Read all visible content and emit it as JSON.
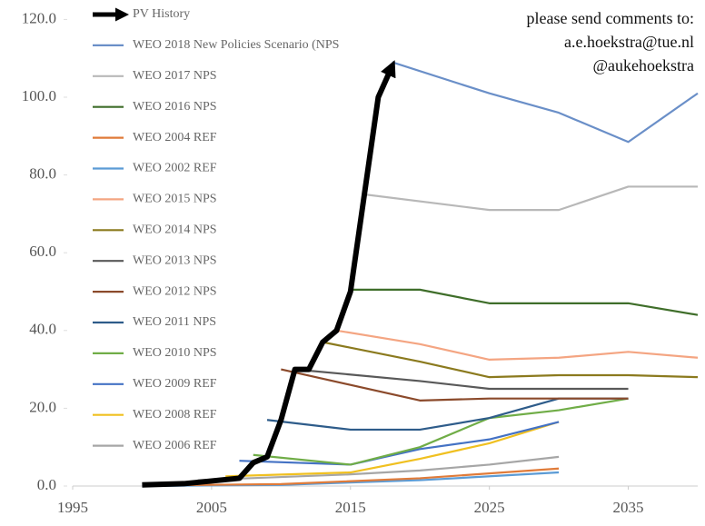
{
  "chart_data": {
    "type": "line",
    "annotation": [
      "please send comments to:",
      "a.e.hoekstra@tue.nl",
      "@aukehoekstra"
    ],
    "xlim": [
      1995,
      2040
    ],
    "xticks": [
      1995,
      2005,
      2015,
      2025,
      2035
    ],
    "ylim": [
      0,
      125
    ],
    "yticks": [
      {
        "value": 0,
        "label": "0.0"
      },
      {
        "value": 20,
        "label": "20.0"
      },
      {
        "value": 40,
        "label": "40.0"
      },
      {
        "value": 60,
        "label": "60.0"
      },
      {
        "value": 80,
        "label": "80.0"
      },
      {
        "value": 100,
        "label": "100.0"
      },
      {
        "value": 120,
        "label": "120.0"
      }
    ],
    "series": [
      {
        "name": "PV History",
        "color": "#000000",
        "x": [
          2000,
          2003,
          2005,
          2007,
          2008,
          2009,
          2010,
          2011,
          2012,
          2013,
          2014,
          2015,
          2016,
          2017,
          2018
        ],
        "values": [
          0.3,
          0.6,
          1.3,
          2,
          6,
          7.5,
          17,
          30,
          30,
          37,
          40,
          50,
          75,
          100,
          108
        ]
      },
      {
        "name": "WEO 2018 New Policies Scenario (NPS",
        "color": "#6a8fc8",
        "x": [
          2018,
          2025,
          2030,
          2035,
          2040
        ],
        "values": [
          109,
          101,
          96,
          88.5,
          101
        ]
      },
      {
        "name": "WEO 2017 NPS",
        "color": "#b8b8b8",
        "x": [
          2016,
          2025,
          2030,
          2035,
          2040
        ],
        "values": [
          75,
          71,
          71,
          77,
          77
        ]
      },
      {
        "name": "WEO 2016 NPS",
        "color": "#3f6e2a",
        "x": [
          2015,
          2020,
          2025,
          2030,
          2035,
          2040
        ],
        "values": [
          50.5,
          50.5,
          47,
          47,
          47,
          44
        ]
      },
      {
        "name": "WEO 2004 REF",
        "color": "#e07b39",
        "x": [
          2002,
          2010,
          2020,
          2030
        ],
        "values": [
          0.2,
          0.5,
          2,
          4.5
        ]
      },
      {
        "name": "WEO 2002 REF",
        "color": "#5b9bd5",
        "x": [
          2000,
          2010,
          2020,
          2030
        ],
        "values": [
          0,
          0.3,
          1.5,
          3.5
        ]
      },
      {
        "name": "WEO 2015 NPS",
        "color": "#f4a582",
        "x": [
          2014,
          2020,
          2025,
          2030,
          2035,
          2040
        ],
        "values": [
          40,
          36.5,
          32.5,
          33,
          34.5,
          33
        ]
      },
      {
        "name": "WEO 2014 NPS",
        "color": "#8b7a1e",
        "x": [
          2013,
          2020,
          2025,
          2030,
          2035,
          2040
        ],
        "values": [
          37,
          32,
          28,
          28.5,
          28.5,
          28
        ]
      },
      {
        "name": "WEO 2013 NPS",
        "color": "#595959",
        "x": [
          2011,
          2020,
          2025,
          2030,
          2035
        ],
        "values": [
          30,
          27,
          25,
          25,
          25
        ]
      },
      {
        "name": "WEO 2012 NPS",
        "color": "#8b4a2b",
        "x": [
          2010,
          2020,
          2025,
          2030,
          2035
        ],
        "values": [
          30,
          22,
          22.5,
          22.5,
          22.5
        ]
      },
      {
        "name": "WEO 2011 NPS",
        "color": "#2e5c8a",
        "x": [
          2009,
          2015,
          2020,
          2025,
          2030,
          2035
        ],
        "values": [
          17,
          14.5,
          14.5,
          17.5,
          22.5,
          22.5
        ]
      },
      {
        "name": "WEO 2010 NPS",
        "color": "#70ad47",
        "x": [
          2008,
          2015,
          2020,
          2025,
          2030,
          2035
        ],
        "values": [
          8,
          5.5,
          10,
          17.5,
          19.5,
          22.5
        ]
      },
      {
        "name": "WEO 2009 REF",
        "color": "#4472c4",
        "x": [
          2007,
          2015,
          2020,
          2025,
          2030
        ],
        "values": [
          6.5,
          5.5,
          9.5,
          12,
          16.5
        ]
      },
      {
        "name": "WEO 2008 REF",
        "color": "#f0c020",
        "x": [
          2006,
          2015,
          2020,
          2025,
          2030
        ],
        "values": [
          2.5,
          3.5,
          7,
          11,
          16.5
        ]
      },
      {
        "name": "WEO 2006 REF",
        "color": "#a6a6a6",
        "x": [
          2004,
          2015,
          2020,
          2025,
          2030
        ],
        "values": [
          1.5,
          3,
          4,
          5.5,
          7.5
        ]
      }
    ]
  }
}
